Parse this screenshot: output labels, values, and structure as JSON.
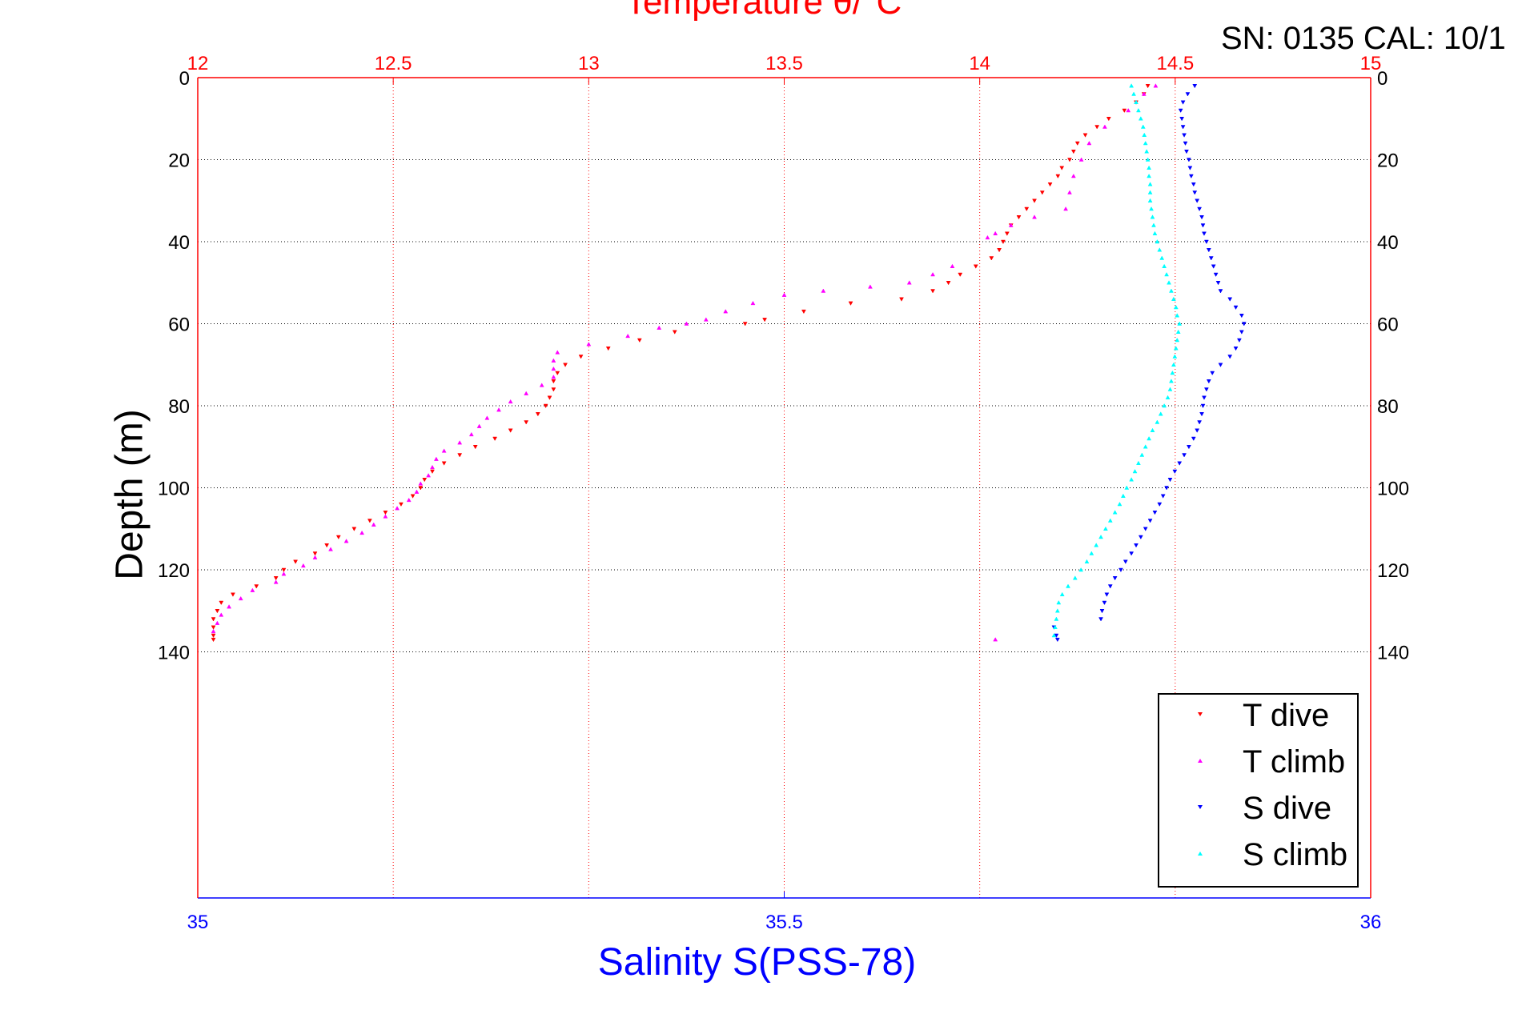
{
  "chart_data": {
    "type": "scatter",
    "title": "Temperature θ/°C",
    "annotation": "SN: 0135  CAL: 10/1",
    "ylabel": "Depth (m)",
    "xlabel": "Salinity S(PSS-78)",
    "top_axis": {
      "label": "Temperature θ/°C",
      "range": [
        12,
        15
      ],
      "ticks": [
        "12",
        "12.5",
        "13",
        "13.5",
        "14",
        "14.5",
        "15"
      ],
      "color": "#ff0000",
      "grid": true
    },
    "bottom_axis": {
      "label": "Salinity S(PSS-78)",
      "range": [
        35,
        36
      ],
      "ticks": [
        "35",
        "35.5",
        "36"
      ],
      "color": "#0000ff"
    },
    "y_axis": {
      "label": "Depth (m)",
      "range": [
        0,
        200
      ],
      "reversed": true,
      "ticks": [
        "0",
        "20",
        "40",
        "60",
        "80",
        "100",
        "120",
        "140"
      ],
      "grid": true,
      "grid_color": "#000000"
    },
    "legend": {
      "position": "bottom-right",
      "entries": [
        "T dive",
        "T climb",
        "S dive",
        "S climb"
      ]
    },
    "series": [
      {
        "name": "T dive",
        "axis": "temperature",
        "marker": "triangle-down",
        "color": "#ff0000",
        "points": [
          [
            14.43,
            2
          ],
          [
            14.42,
            4
          ],
          [
            14.4,
            6
          ],
          [
            14.37,
            8
          ],
          [
            14.33,
            10
          ],
          [
            14.3,
            12
          ],
          [
            14.27,
            14
          ],
          [
            14.25,
            16
          ],
          [
            14.24,
            18
          ],
          [
            14.23,
            20
          ],
          [
            14.21,
            22
          ],
          [
            14.2,
            24
          ],
          [
            14.18,
            26
          ],
          [
            14.16,
            28
          ],
          [
            14.14,
            30
          ],
          [
            14.12,
            32
          ],
          [
            14.1,
            34
          ],
          [
            14.08,
            36
          ],
          [
            14.07,
            38
          ],
          [
            14.06,
            40
          ],
          [
            14.05,
            42
          ],
          [
            14.03,
            44
          ],
          [
            13.99,
            46
          ],
          [
            13.95,
            48
          ],
          [
            13.92,
            50
          ],
          [
            13.88,
            52
          ],
          [
            13.8,
            54
          ],
          [
            13.67,
            55
          ],
          [
            13.55,
            57
          ],
          [
            13.45,
            59
          ],
          [
            13.4,
            60
          ],
          [
            13.22,
            62
          ],
          [
            13.13,
            64
          ],
          [
            13.05,
            66
          ],
          [
            12.98,
            68
          ],
          [
            12.94,
            70
          ],
          [
            12.92,
            72
          ],
          [
            12.91,
            74
          ],
          [
            12.91,
            76
          ],
          [
            12.9,
            78
          ],
          [
            12.89,
            80
          ],
          [
            12.87,
            82
          ],
          [
            12.84,
            84
          ],
          [
            12.8,
            86
          ],
          [
            12.76,
            88
          ],
          [
            12.71,
            90
          ],
          [
            12.67,
            92
          ],
          [
            12.63,
            94
          ],
          [
            12.6,
            96
          ],
          [
            12.58,
            98
          ],
          [
            12.57,
            100
          ],
          [
            12.55,
            102
          ],
          [
            12.52,
            104
          ],
          [
            12.48,
            106
          ],
          [
            12.44,
            108
          ],
          [
            12.4,
            110
          ],
          [
            12.36,
            112
          ],
          [
            12.33,
            114
          ],
          [
            12.3,
            116
          ],
          [
            12.25,
            118
          ],
          [
            12.22,
            120
          ],
          [
            12.2,
            122
          ],
          [
            12.15,
            124
          ],
          [
            12.09,
            126
          ],
          [
            12.06,
            128
          ],
          [
            12.05,
            130
          ],
          [
            12.04,
            132
          ],
          [
            12.04,
            134
          ],
          [
            12.04,
            136
          ],
          [
            12.04,
            137
          ]
        ]
      },
      {
        "name": "T climb",
        "axis": "temperature",
        "marker": "triangle-up",
        "color": "#ff00ff",
        "points": [
          [
            14.04,
            137
          ],
          [
            12.04,
            135
          ],
          [
            12.05,
            133
          ],
          [
            12.06,
            131
          ],
          [
            12.08,
            129
          ],
          [
            12.11,
            127
          ],
          [
            12.14,
            125
          ],
          [
            12.2,
            123
          ],
          [
            12.22,
            121
          ],
          [
            12.27,
            119
          ],
          [
            12.3,
            117
          ],
          [
            12.34,
            115
          ],
          [
            12.38,
            113
          ],
          [
            12.42,
            111
          ],
          [
            12.45,
            109
          ],
          [
            12.48,
            107
          ],
          [
            12.51,
            105
          ],
          [
            12.54,
            103
          ],
          [
            12.56,
            101
          ],
          [
            12.57,
            99
          ],
          [
            12.59,
            97
          ],
          [
            12.6,
            95
          ],
          [
            12.61,
            93
          ],
          [
            12.63,
            91
          ],
          [
            12.67,
            89
          ],
          [
            12.7,
            87
          ],
          [
            12.72,
            85
          ],
          [
            12.74,
            83
          ],
          [
            12.77,
            81
          ],
          [
            12.8,
            79
          ],
          [
            12.84,
            77
          ],
          [
            12.88,
            75
          ],
          [
            12.91,
            73
          ],
          [
            12.91,
            71
          ],
          [
            12.91,
            69
          ],
          [
            12.92,
            67
          ],
          [
            13.0,
            65
          ],
          [
            13.1,
            63
          ],
          [
            13.18,
            61
          ],
          [
            13.25,
            60
          ],
          [
            13.3,
            59
          ],
          [
            13.35,
            57
          ],
          [
            13.42,
            55
          ],
          [
            13.5,
            53
          ],
          [
            13.6,
            52
          ],
          [
            13.72,
            51
          ],
          [
            13.82,
            50
          ],
          [
            13.88,
            48
          ],
          [
            13.93,
            46
          ],
          [
            14.02,
            39
          ],
          [
            14.04,
            38
          ],
          [
            14.08,
            36
          ],
          [
            14.14,
            34
          ],
          [
            14.22,
            32
          ],
          [
            14.23,
            28
          ],
          [
            14.24,
            24
          ],
          [
            14.26,
            20
          ],
          [
            14.28,
            16
          ],
          [
            14.32,
            12
          ],
          [
            14.38,
            8
          ],
          [
            14.42,
            4
          ],
          [
            14.45,
            2
          ]
        ]
      },
      {
        "name": "S dive",
        "axis": "salinity",
        "marker": "triangle-down",
        "color": "#0000ff",
        "points": [
          [
            35.85,
            2
          ],
          [
            35.844,
            4
          ],
          [
            35.84,
            6
          ],
          [
            35.838,
            8
          ],
          [
            35.839,
            10
          ],
          [
            35.84,
            12
          ],
          [
            35.841,
            14
          ],
          [
            35.842,
            16
          ],
          [
            35.843,
            18
          ],
          [
            35.845,
            20
          ],
          [
            35.846,
            22
          ],
          [
            35.847,
            24
          ],
          [
            35.849,
            26
          ],
          [
            35.85,
            28
          ],
          [
            35.852,
            30
          ],
          [
            35.854,
            32
          ],
          [
            35.856,
            34
          ],
          [
            35.857,
            36
          ],
          [
            35.858,
            38
          ],
          [
            35.86,
            40
          ],
          [
            35.862,
            42
          ],
          [
            35.864,
            44
          ],
          [
            35.866,
            46
          ],
          [
            35.868,
            48
          ],
          [
            35.87,
            50
          ],
          [
            35.872,
            52
          ],
          [
            35.88,
            54
          ],
          [
            35.885,
            56
          ],
          [
            35.89,
            58
          ],
          [
            35.892,
            60
          ],
          [
            35.89,
            62
          ],
          [
            35.888,
            64
          ],
          [
            35.885,
            66
          ],
          [
            35.88,
            68
          ],
          [
            35.872,
            70
          ],
          [
            35.865,
            72
          ],
          [
            35.862,
            74
          ],
          [
            35.86,
            76
          ],
          [
            35.858,
            78
          ],
          [
            35.857,
            80
          ],
          [
            35.856,
            82
          ],
          [
            35.854,
            84
          ],
          [
            35.852,
            86
          ],
          [
            35.849,
            88
          ],
          [
            35.845,
            90
          ],
          [
            35.841,
            92
          ],
          [
            35.837,
            94
          ],
          [
            35.833,
            96
          ],
          [
            35.829,
            98
          ],
          [
            35.826,
            100
          ],
          [
            35.823,
            102
          ],
          [
            35.82,
            104
          ],
          [
            35.816,
            106
          ],
          [
            35.812,
            108
          ],
          [
            35.808,
            110
          ],
          [
            35.804,
            112
          ],
          [
            35.8,
            114
          ],
          [
            35.796,
            116
          ],
          [
            35.791,
            118
          ],
          [
            35.787,
            120
          ],
          [
            35.782,
            122
          ],
          [
            35.778,
            124
          ],
          [
            35.775,
            126
          ],
          [
            35.773,
            128
          ],
          [
            35.771,
            130
          ],
          [
            35.77,
            132
          ],
          [
            35.73,
            134
          ],
          [
            35.732,
            136
          ],
          [
            35.733,
            137
          ]
        ]
      },
      {
        "name": "S climb",
        "axis": "salinity",
        "marker": "triangle-up",
        "color": "#00ffff",
        "points": [
          [
            35.73,
            136
          ],
          [
            35.731,
            134
          ],
          [
            35.732,
            132
          ],
          [
            35.733,
            130
          ],
          [
            35.734,
            128
          ],
          [
            35.737,
            126
          ],
          [
            35.742,
            124
          ],
          [
            35.748,
            122
          ],
          [
            35.753,
            120
          ],
          [
            35.758,
            118
          ],
          [
            35.762,
            116
          ],
          [
            35.766,
            114
          ],
          [
            35.77,
            112
          ],
          [
            35.774,
            110
          ],
          [
            35.778,
            108
          ],
          [
            35.782,
            106
          ],
          [
            35.786,
            104
          ],
          [
            35.789,
            102
          ],
          [
            35.792,
            100
          ],
          [
            35.796,
            98
          ],
          [
            35.799,
            96
          ],
          [
            35.802,
            94
          ],
          [
            35.805,
            92
          ],
          [
            35.808,
            90
          ],
          [
            35.811,
            88
          ],
          [
            35.814,
            86
          ],
          [
            35.818,
            84
          ],
          [
            35.821,
            82
          ],
          [
            35.824,
            80
          ],
          [
            35.827,
            78
          ],
          [
            35.829,
            76
          ],
          [
            35.83,
            74
          ],
          [
            35.831,
            72
          ],
          [
            35.832,
            70
          ],
          [
            35.833,
            68
          ],
          [
            35.834,
            66
          ],
          [
            35.835,
            64
          ],
          [
            35.836,
            62
          ],
          [
            35.837,
            60
          ],
          [
            35.835,
            58
          ],
          [
            35.834,
            56
          ],
          [
            35.832,
            54
          ],
          [
            35.83,
            52
          ],
          [
            35.828,
            50
          ],
          [
            35.826,
            48
          ],
          [
            35.824,
            46
          ],
          [
            35.822,
            44
          ],
          [
            35.82,
            42
          ],
          [
            35.818,
            40
          ],
          [
            35.816,
            38
          ],
          [
            35.815,
            36
          ],
          [
            35.814,
            34
          ],
          [
            35.813,
            32
          ],
          [
            35.812,
            30
          ],
          [
            35.812,
            28
          ],
          [
            35.812,
            26
          ],
          [
            35.811,
            24
          ],
          [
            35.811,
            22
          ],
          [
            35.81,
            20
          ],
          [
            35.809,
            18
          ],
          [
            35.808,
            16
          ],
          [
            35.807,
            14
          ],
          [
            35.806,
            12
          ],
          [
            35.804,
            10
          ],
          [
            35.802,
            8
          ],
          [
            35.8,
            6
          ],
          [
            35.798,
            4
          ],
          [
            35.796,
            2
          ]
        ]
      }
    ]
  }
}
